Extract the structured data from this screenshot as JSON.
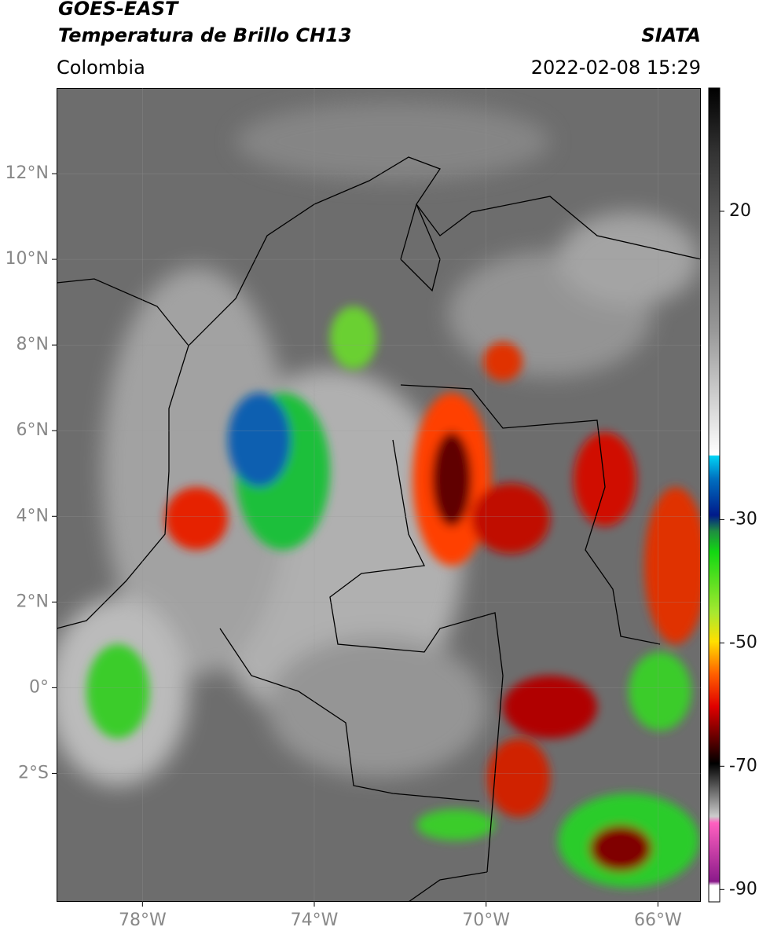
{
  "header": {
    "title": "GOES-EAST",
    "subtitle": "Temperatura de Brillo CH13",
    "source": "SIATA",
    "region": "Colombia",
    "datetime": "2022-02-08 15:29"
  },
  "map": {
    "lon_lim": [
      -80,
      -65
    ],
    "lat_lim": [
      -5,
      14
    ],
    "lat_ticks": [
      {
        "value": 12,
        "label": "12°N"
      },
      {
        "value": 10,
        "label": "10°N"
      },
      {
        "value": 8,
        "label": "8°N"
      },
      {
        "value": 6,
        "label": "6°N"
      },
      {
        "value": 4,
        "label": "4°N"
      },
      {
        "value": 2,
        "label": "2°N"
      },
      {
        "value": 0,
        "label": "0°"
      },
      {
        "value": -2,
        "label": "2°S"
      }
    ],
    "lon_ticks": [
      {
        "value": -78,
        "label": "78°W"
      },
      {
        "value": -74,
        "label": "74°W"
      },
      {
        "value": -70,
        "label": "70°W"
      },
      {
        "value": -66,
        "label": "66°W"
      }
    ]
  },
  "colorbar": {
    "lim": [
      -92,
      40
    ],
    "ticks": [
      20,
      -30,
      -50,
      -70,
      -90
    ]
  }
}
